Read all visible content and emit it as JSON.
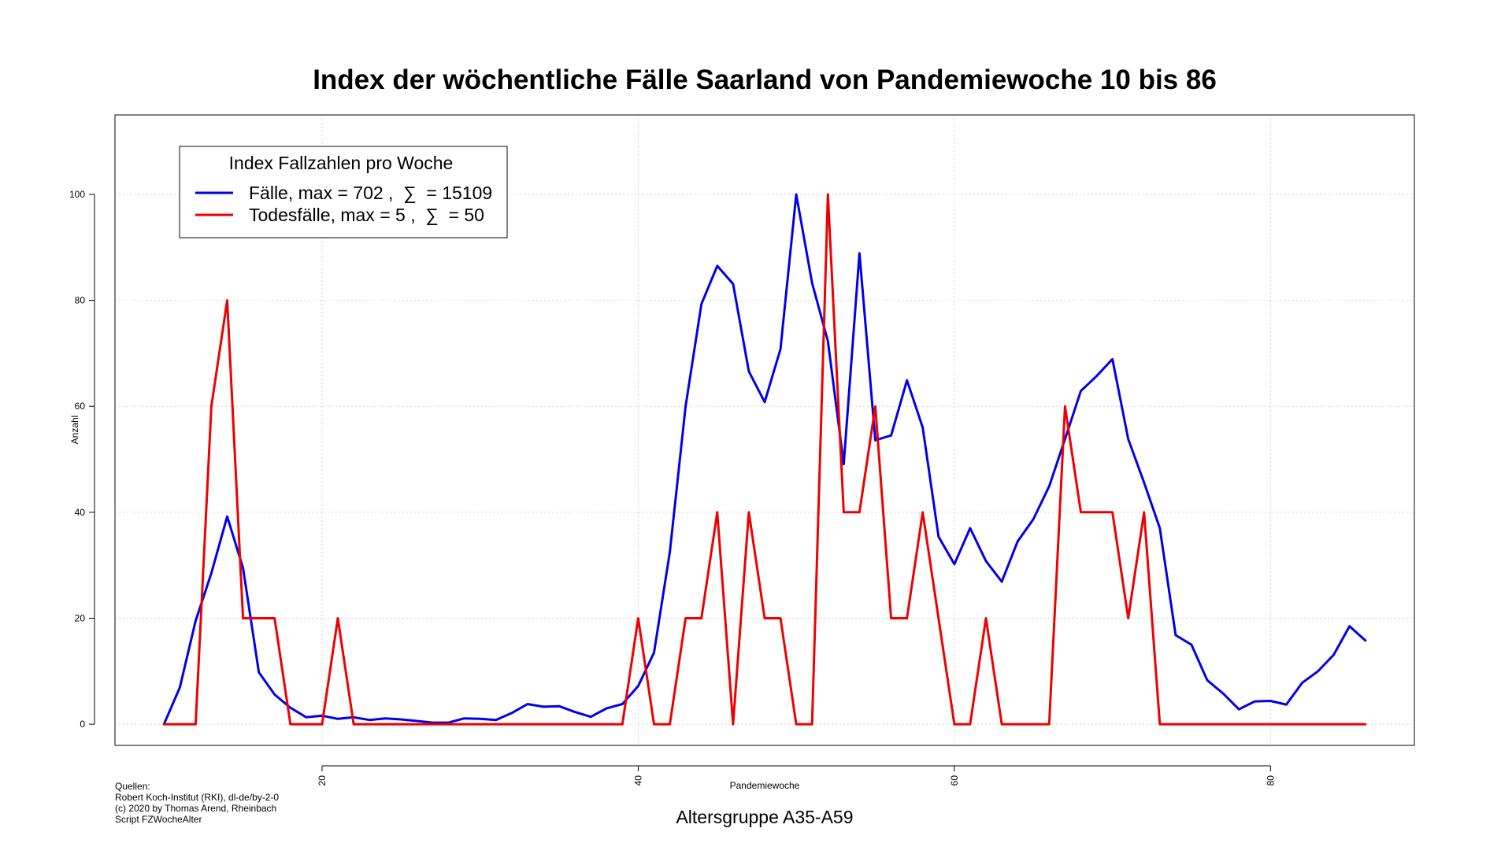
{
  "chart_data": {
    "type": "line",
    "title": "Index der wöchentliche Fälle Saarland von Pandemiewoche 10 bis 86",
    "xlabel": "Pandemiewoche",
    "ylabel": "Anzahl",
    "subtitle": "Altersgruppe A35-A59",
    "xlim": [
      6.9,
      89.1
    ],
    "ylim": [
      -4,
      115
    ],
    "x_ticks": [
      20,
      40,
      60,
      80
    ],
    "y_ticks": [
      0,
      20,
      40,
      60,
      80,
      100
    ],
    "grid": true,
    "legend": {
      "title": "Index Fallzahlen pro Woche",
      "placement": "top-left"
    },
    "x": [
      10,
      11,
      12,
      13,
      14,
      15,
      16,
      17,
      18,
      19,
      20,
      21,
      22,
      23,
      24,
      25,
      26,
      27,
      28,
      29,
      30,
      31,
      32,
      33,
      34,
      35,
      36,
      37,
      38,
      39,
      40,
      41,
      42,
      43,
      44,
      45,
      46,
      47,
      48,
      49,
      50,
      51,
      52,
      53,
      54,
      55,
      56,
      57,
      58,
      59,
      60,
      61,
      62,
      63,
      64,
      65,
      66,
      67,
      68,
      69,
      70,
      71,
      72,
      73,
      74,
      75,
      76,
      77,
      78,
      79,
      80,
      81,
      82,
      83,
      84,
      85,
      86
    ],
    "series": [
      {
        "name": "Fälle, max = 702 ,  ∑  = 15109",
        "color": "#0000ee",
        "values": [
          0,
          6.9,
          19.5,
          28.5,
          39.2,
          29.5,
          9.8,
          5.6,
          3.1,
          1.3,
          1.6,
          1.0,
          1.3,
          0.8,
          1.1,
          0.9,
          0.6,
          0.3,
          0.3,
          1.1,
          1.0,
          0.8,
          2.1,
          3.8,
          3.3,
          3.4,
          2.3,
          1.4,
          3.0,
          3.8,
          7.2,
          13.5,
          32.5,
          60.0,
          79.3,
          86.5,
          83.1,
          66.6,
          60.8,
          70.8,
          100.0,
          83.3,
          72.3,
          49.1,
          88.9,
          53.6,
          54.5,
          64.9,
          56.0,
          35.4,
          30.2,
          37.0,
          30.8,
          26.9,
          34.5,
          38.7,
          44.9,
          53.8,
          62.9,
          65.7,
          68.9,
          53.8,
          45.6,
          37.0,
          16.8,
          15.0,
          8.3,
          5.8,
          2.8,
          4.3,
          4.4,
          3.7,
          7.8,
          10.0,
          13.1,
          18.5,
          15.8
        ]
      },
      {
        "name": "Todesfälle, max = 5 ,  ∑  = 50",
        "color": "#ee0000",
        "values": [
          0,
          0,
          0,
          60,
          80,
          20,
          20,
          20,
          0,
          0,
          0,
          20,
          0,
          0,
          0,
          0,
          0,
          0,
          0,
          0,
          0,
          0,
          0,
          0,
          0,
          0,
          0,
          0,
          0,
          0,
          20,
          0,
          0,
          20,
          20,
          40,
          0,
          40,
          20,
          20,
          0,
          0,
          100,
          40,
          40,
          60,
          20,
          20,
          40,
          20,
          0,
          0,
          20,
          0,
          0,
          0,
          0,
          60,
          40,
          40,
          40,
          20,
          40,
          0,
          0,
          0,
          0,
          0,
          0,
          0,
          0,
          0,
          0,
          0,
          0,
          0,
          0
        ]
      }
    ]
  },
  "footer": {
    "sources_title": "Quellen:",
    "source_line_1": "Robert Koch-Institut (RKI), dl-de/by-2-0",
    "source_line_2": "(c) 2020 by Thomas Arend, Rheinbach",
    "source_line_3": "Script FZWocheAlter"
  }
}
